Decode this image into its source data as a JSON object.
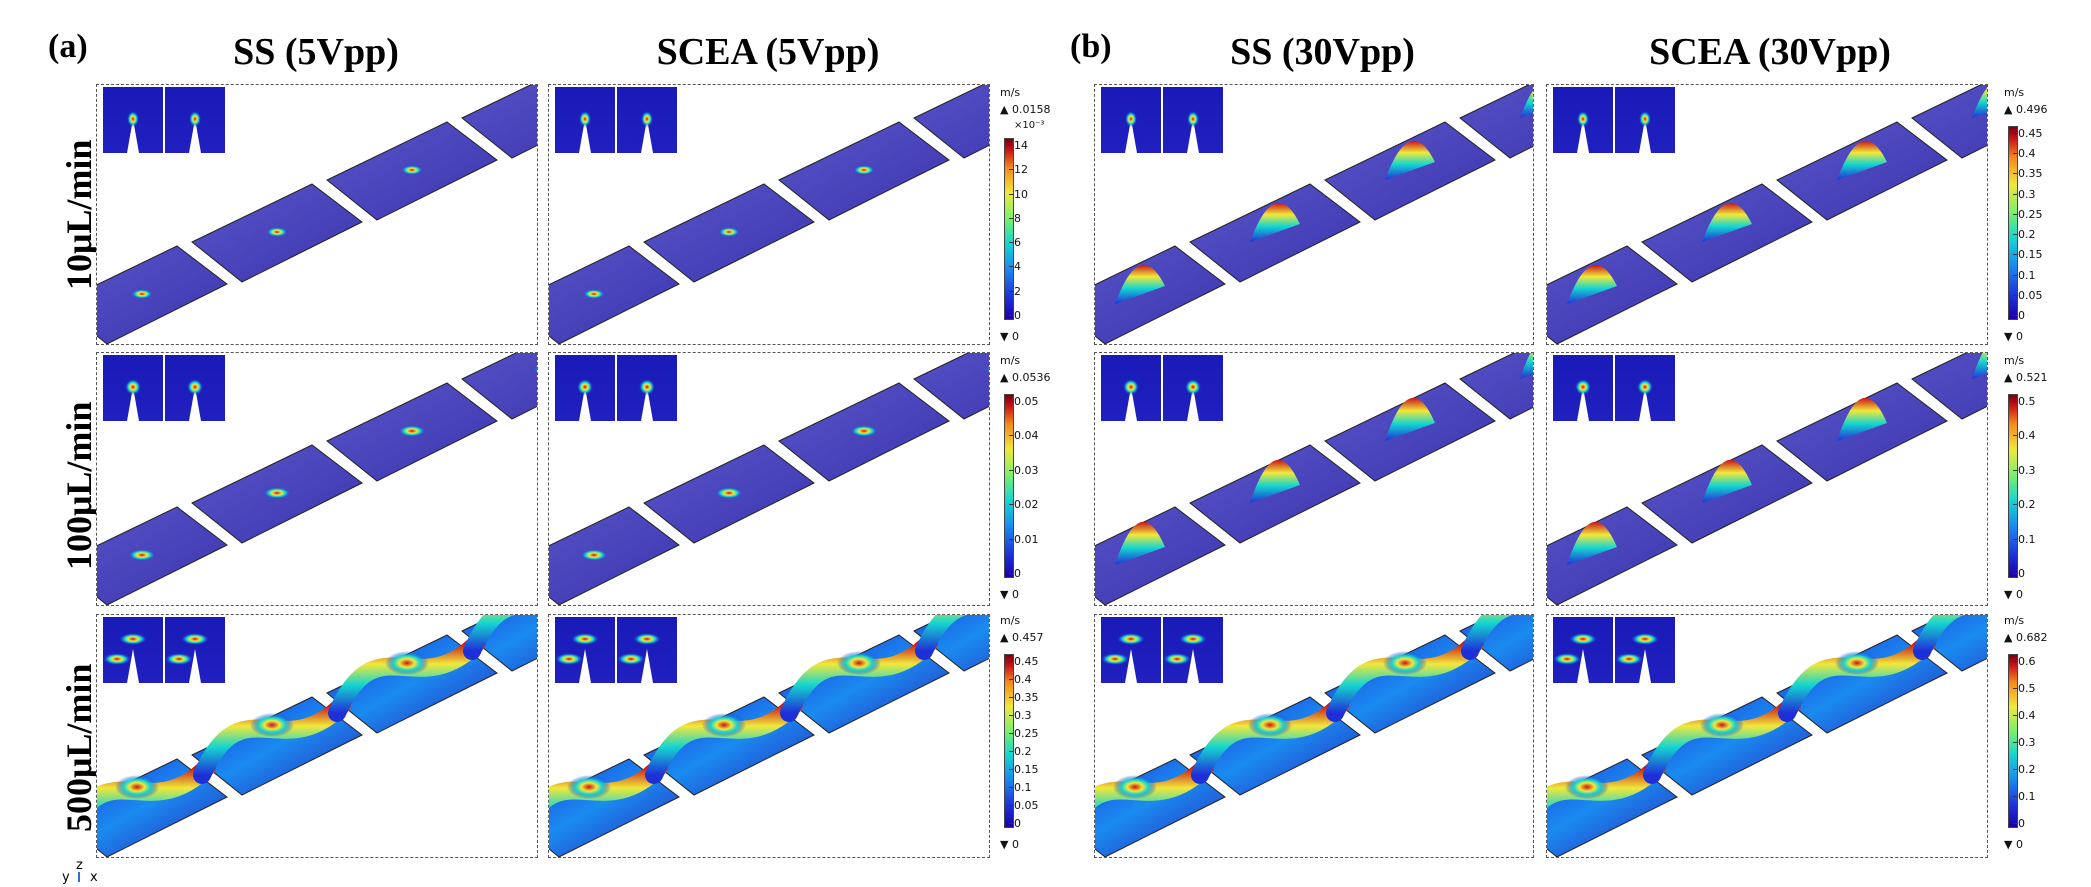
{
  "panels": [
    {
      "letter": "(a)",
      "columns": [
        "SS (5Vpp)",
        "SCEA (5Vpp)"
      ]
    },
    {
      "letter": "(b)",
      "columns": [
        "SS (30Vpp)",
        "SCEA (30Vpp)"
      ]
    }
  ],
  "rows": [
    "10μL/min",
    "100μL/min",
    "500μL/min"
  ],
  "colorbars": [
    {
      "unit": "m/s",
      "max": "▲ 0.0158",
      "exponent": "×10⁻³",
      "ticks": [
        "14",
        "12",
        "10",
        "8",
        "6",
        "4",
        "2",
        "0"
      ],
      "min": "▼ 0"
    },
    {
      "unit": "m/s",
      "max": "▲ 0.496",
      "ticks": [
        "0.45",
        "0.4",
        "0.35",
        "0.3",
        "0.25",
        "0.2",
        "0.15",
        "0.1",
        "0.05",
        "0"
      ],
      "min": "▼ 0"
    },
    {
      "unit": "m/s",
      "max": "▲ 0.0536",
      "ticks": [
        "0.05",
        "0.04",
        "0.03",
        "0.02",
        "0.01",
        "0"
      ],
      "min": "▼ 0"
    },
    {
      "unit": "m/s",
      "max": "▲ 0.521",
      "ticks": [
        "0.5",
        "0.4",
        "0.3",
        "0.2",
        "0.1",
        "0"
      ],
      "min": "▼ 0"
    },
    {
      "unit": "m/s",
      "max": "▲ 0.457",
      "ticks": [
        "0.45",
        "0.4",
        "0.35",
        "0.3",
        "0.25",
        "0.2",
        "0.15",
        "0.1",
        "0.05",
        "0"
      ],
      "min": "▼ 0"
    },
    {
      "unit": "m/s",
      "max": "▲ 0.682",
      "ticks": [
        "0.6",
        "0.5",
        "0.4",
        "0.3",
        "0.2",
        "0.1",
        "0"
      ],
      "min": "▼ 0"
    }
  ],
  "axes": {
    "y": "y",
    "z": "z",
    "x": "x"
  },
  "colors": {
    "low": "#1a00a8",
    "mid": "#14d6d0",
    "high": "#c8121a"
  }
}
